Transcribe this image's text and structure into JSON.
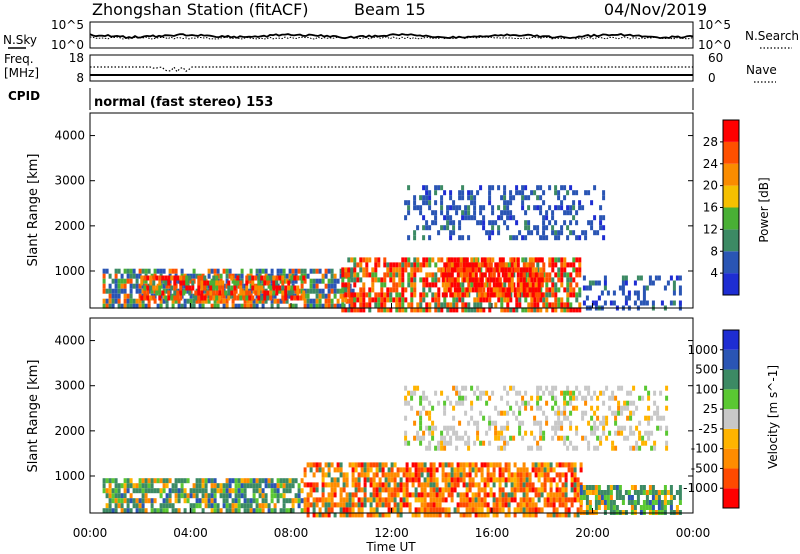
{
  "header": {
    "title": "Zhongshan Station (fitACF)",
    "beam": "Beam 15",
    "date": "04/Nov/2019"
  },
  "noise_panel": {
    "left_label": "N.Sky",
    "right_label": "N.Search",
    "tick_top": "10^5",
    "tick_bottom": "10^0"
  },
  "freq_panel": {
    "left_label_1": "Freq.",
    "left_label_2": "[MHz]",
    "left_ticks": [
      "18",
      "8"
    ],
    "right_label": "Nave",
    "right_ticks": [
      "60",
      "0"
    ]
  },
  "cpid": {
    "label": "CPID",
    "value": "normal (fast stereo) 153"
  },
  "colors": {
    "power": [
      "#1e2dd2",
      "#2a55b4",
      "#3c8a64",
      "#49b035",
      "#f5c000",
      "#fa8c00",
      "#ff5000",
      "#ff0000"
    ],
    "velocity": [
      "#ff0000",
      "#ff4a00",
      "#ff8c00",
      "#ffb400",
      "#c8c8c8",
      "#5ac832",
      "#3c8a64",
      "#2a55b4",
      "#1e2dd2"
    ]
  },
  "chart_data": [
    {
      "type": "heatmap",
      "name": "power",
      "x_range_hours": [
        0,
        24
      ],
      "y_range_km": [
        180,
        4500
      ],
      "ylabel": "Slant Range [km]",
      "y_ticks": [
        1000,
        2000,
        3000,
        4000
      ],
      "colorbar": {
        "label": "Power [dB]",
        "ticks": [
          "4",
          "8",
          "12",
          "16",
          "20",
          "24",
          "28"
        ],
        "range": [
          0,
          32
        ]
      },
      "regions": [
        {
          "t": [
            0.5,
            10.5
          ],
          "r": [
            180,
            1050
          ],
          "level": "mid"
        },
        {
          "t": [
            2.0,
            8.5
          ],
          "r": [
            400,
            900
          ],
          "level": "high"
        },
        {
          "t": [
            10.0,
            19.5
          ],
          "r": [
            180,
            1300
          ],
          "level": "high"
        },
        {
          "t": [
            14.0,
            18.0
          ],
          "r": [
            500,
            1300
          ],
          "level": "very-high"
        },
        {
          "t": [
            12.5,
            20.5
          ],
          "r": [
            1700,
            2900
          ],
          "level": "low"
        },
        {
          "t": [
            19.5,
            23.5
          ],
          "r": [
            180,
            900
          ],
          "level": "low"
        }
      ]
    },
    {
      "type": "heatmap",
      "name": "velocity",
      "x_range_hours": [
        0,
        24
      ],
      "y_range_km": [
        180,
        4500
      ],
      "ylabel": "Slant Range [km]",
      "y_ticks": [
        1000,
        2000,
        3000,
        4000
      ],
      "xlabel": "Time UT",
      "x_ticks": [
        "00:00",
        "04:00",
        "08:00",
        "12:00",
        "16:00",
        "20:00",
        "00:00"
      ],
      "colorbar": {
        "label": "Velocity [m s^-1]",
        "ticks": [
          "-1000",
          "-500",
          "-100",
          "-25",
          "25",
          "100",
          "500",
          "1000"
        ],
        "levels": 9
      },
      "regions": [
        {
          "t": [
            0.5,
            8.5
          ],
          "r": [
            180,
            950
          ],
          "level": "positive"
        },
        {
          "t": [
            8.5,
            19.5
          ],
          "r": [
            180,
            1300
          ],
          "level": "negative"
        },
        {
          "t": [
            12.5,
            23.0
          ],
          "r": [
            1600,
            3000
          ],
          "level": "near-zero"
        },
        {
          "t": [
            19.5,
            23.5
          ],
          "r": [
            180,
            800
          ],
          "level": "positive"
        }
      ]
    }
  ]
}
